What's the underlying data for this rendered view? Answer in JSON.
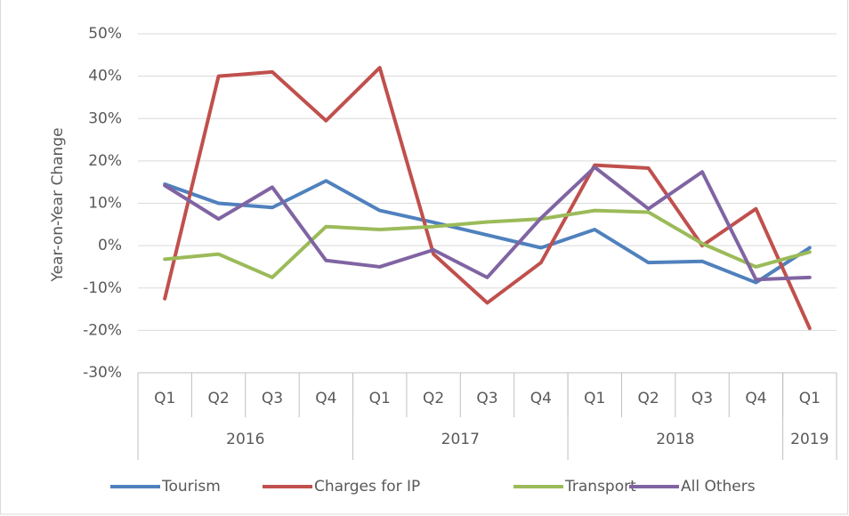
{
  "chart_data": {
    "type": "line",
    "y_label": "Year-on-Year Change",
    "categories": [
      "Q1",
      "Q2",
      "Q3",
      "Q4",
      "Q1",
      "Q2",
      "Q3",
      "Q4",
      "Q1",
      "Q2",
      "Q3",
      "Q4",
      "Q1"
    ],
    "groups": [
      {
        "label": "2016",
        "size": 4
      },
      {
        "label": "2017",
        "size": 4
      },
      {
        "label": "2018",
        "size": 4
      },
      {
        "label": "2019",
        "size": 1
      }
    ],
    "series": [
      {
        "name": "Tourism",
        "color": "#4f81bd",
        "values": [
          14.5,
          10,
          9,
          15.3,
          8.3,
          5.5,
          2.5,
          -0.5,
          3.8,
          -4,
          -3.7,
          -8.7,
          -0.5
        ]
      },
      {
        "name": "Charges for IP",
        "color": "#c0504d",
        "values": [
          -12.5,
          40,
          41,
          29.5,
          42,
          -2,
          -13.5,
          -4,
          19,
          18.3,
          0,
          8.7,
          -19.5
        ]
      },
      {
        "name": "Transport",
        "color": "#9bbb59",
        "values": [
          -3.2,
          -2,
          -7.5,
          4.5,
          3.8,
          4.5,
          5.6,
          6.3,
          8.3,
          7.9,
          0.5,
          -5,
          -1.5
        ]
      },
      {
        "name": "All Others",
        "color": "#8064a2",
        "values": [
          14.2,
          6.3,
          13.8,
          -3.5,
          -5,
          -1,
          -7.5,
          6.5,
          18.5,
          8.7,
          17.4,
          -8,
          -7.5
        ]
      }
    ],
    "ylim": [
      -30,
      50
    ],
    "yticks": [
      {
        "value": -30,
        "label": "-30%"
      },
      {
        "value": -20,
        "label": "-20%"
      },
      {
        "value": -10,
        "label": "-10%"
      },
      {
        "value": 0,
        "label": "0%"
      },
      {
        "value": 10,
        "label": "10%"
      },
      {
        "value": 20,
        "label": "20%"
      },
      {
        "value": 30,
        "label": "30%"
      },
      {
        "value": 40,
        "label": "40%"
      },
      {
        "value": 50,
        "label": "50%"
      }
    ],
    "grid": true,
    "legend": "bottom"
  }
}
